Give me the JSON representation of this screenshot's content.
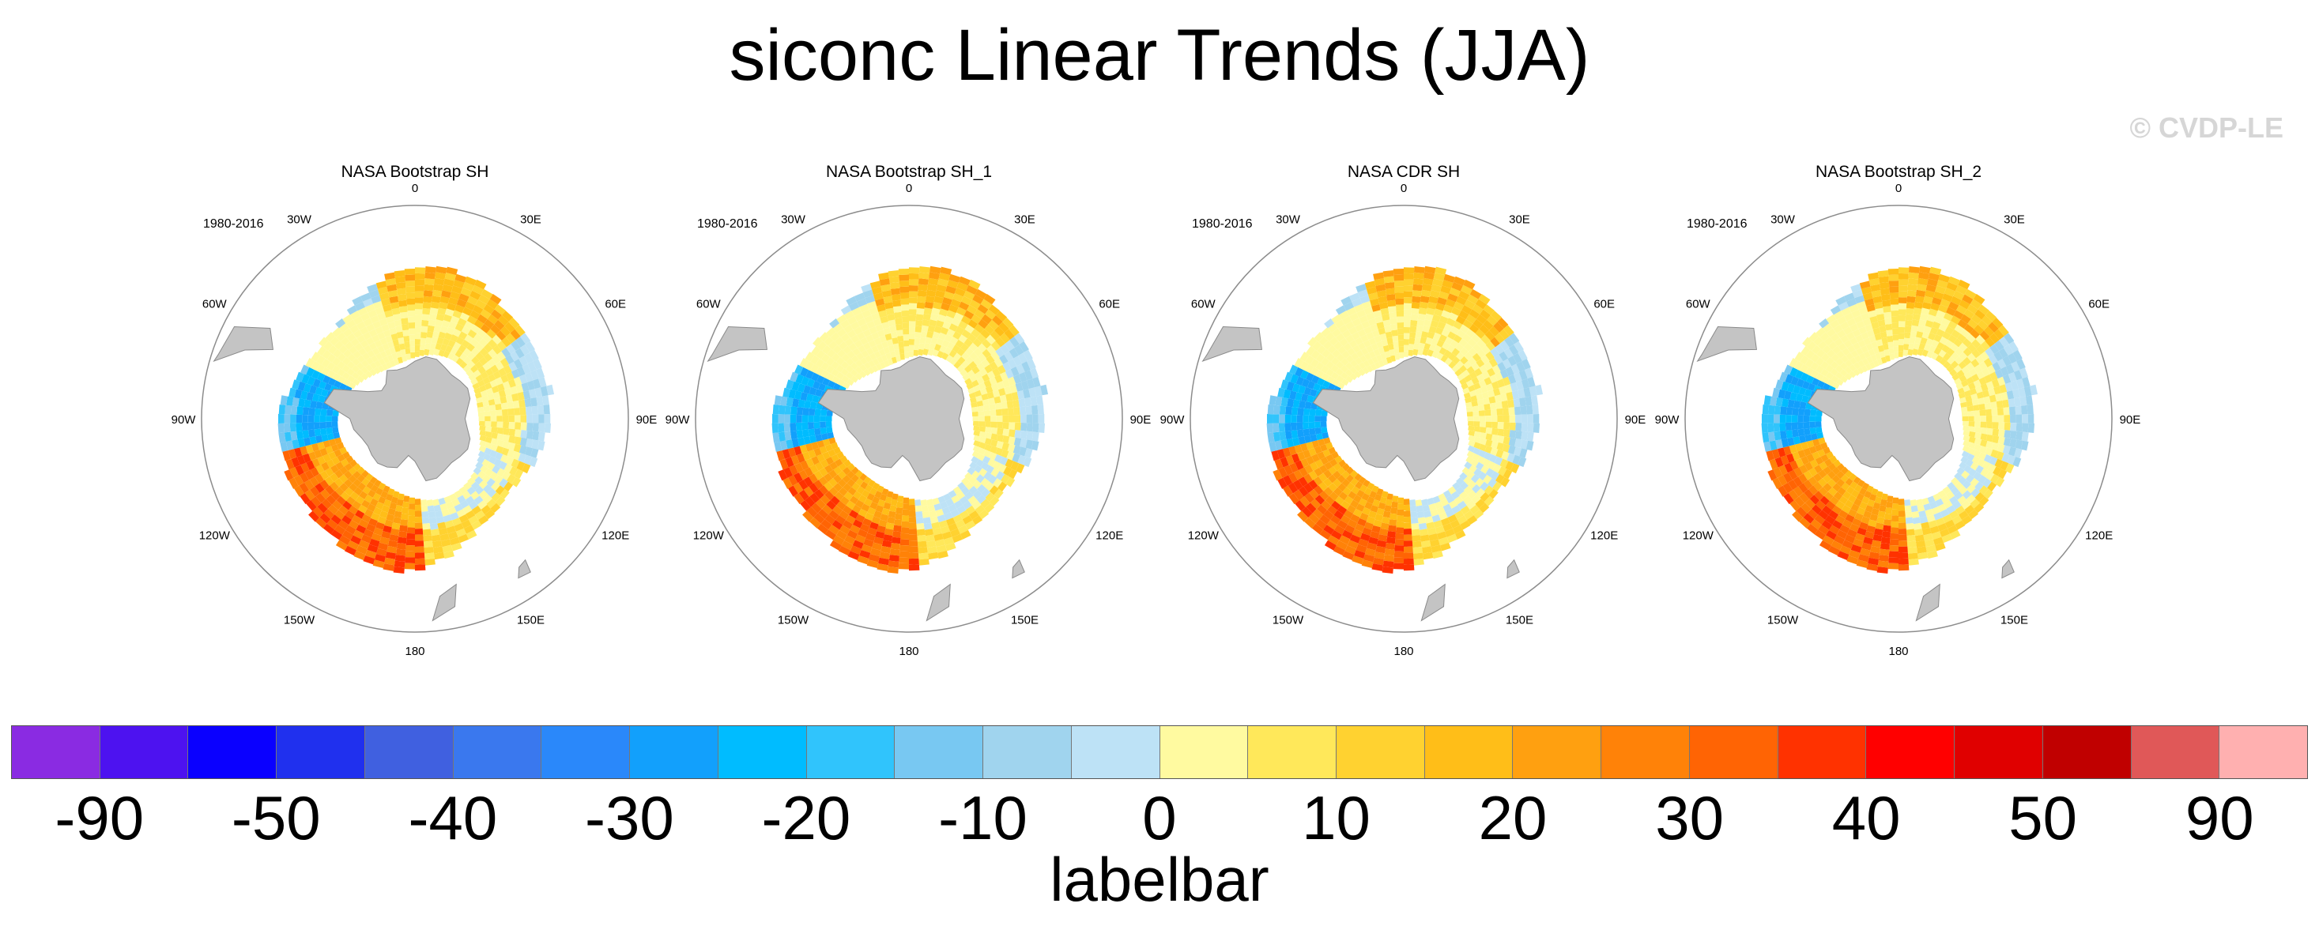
{
  "title": "siconc Linear Trends (JJA)",
  "watermark": "© CVDP-LE",
  "colors": {
    "land": "#c4c4c4",
    "coast": "#8a8a8a",
    "circle": "#8c8c8c"
  },
  "map_labels": {
    "lon_0": "0",
    "lon_30e": "30E",
    "lon_60e": "60E",
    "lon_90e": "90E",
    "lon_120e": "120E",
    "lon_150e": "150E",
    "lon_180": "180",
    "lon_150w": "150W",
    "lon_120w": "120W",
    "lon_90w": "90W",
    "lon_60w": "60W",
    "lon_30w": "30W"
  },
  "panels": [
    {
      "title": "NASA Bootstrap SH",
      "period": "1980-2016"
    },
    {
      "title": "NASA Bootstrap SH_1",
      "period": "1980-2016"
    },
    {
      "title": "NASA CDR SH",
      "period": "1980-2016"
    },
    {
      "title": "NASA Bootstrap SH_2",
      "period": "1980-2016"
    }
  ],
  "colorbar": {
    "title": "labelbar",
    "colors": [
      "#8a2be2",
      "#4d12f0",
      "#0a00ff",
      "#2030ee",
      "#4060e0",
      "#3a78ee",
      "#2a88fa",
      "#12a0fc",
      "#00bcff",
      "#30c4fc",
      "#78c8f2",
      "#a0d4ee",
      "#bde2f6",
      "#fffaa0",
      "#ffe85a",
      "#ffd230",
      "#ffbe18",
      "#ffa010",
      "#ff8208",
      "#ff6404",
      "#ff3200",
      "#ff0000",
      "#e00000",
      "#c00000",
      "#e05858",
      "#ffb0b0"
    ],
    "labels": [
      "-90",
      "-50",
      "-40",
      "-30",
      "-20",
      "-10",
      "0",
      "10",
      "20",
      "30",
      "40",
      "50",
      "90"
    ]
  }
}
